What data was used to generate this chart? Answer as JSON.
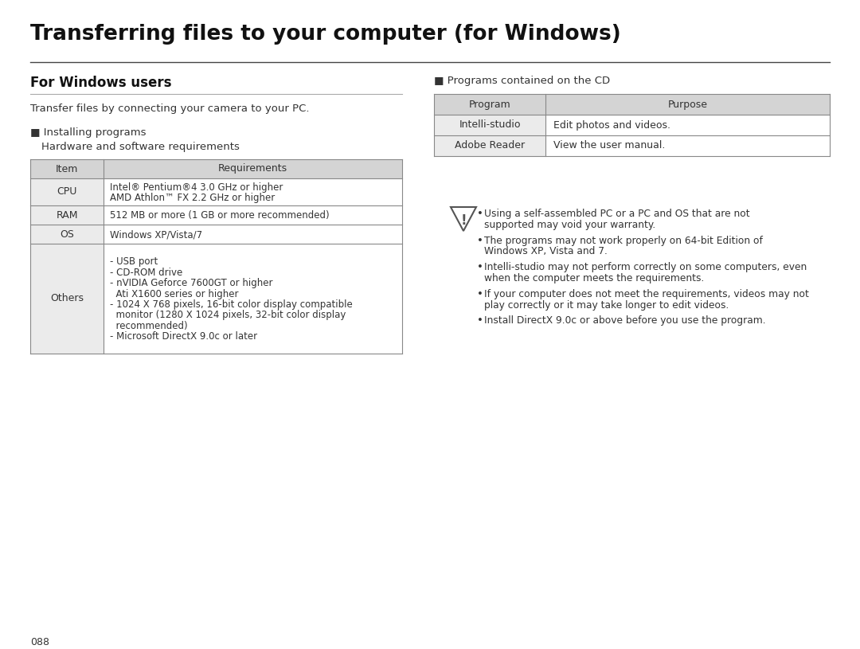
{
  "title": "Transferring files to your computer (for Windows)",
  "section_left": "For Windows users",
  "intro_text": "Transfer files by connecting your camera to your PC.",
  "installing_header": "■ Installing programs",
  "installing_sub": "Hardware and software requirements",
  "table1_headers": [
    "Item",
    "Requirements"
  ],
  "table1_rows": [
    [
      "CPU",
      "Intel® Pentium®4 3.0 GHz or higher\nAMD Athlon™ FX 2.2 GHz or higher"
    ],
    [
      "RAM",
      "512 MB or more (1 GB or more recommended)"
    ],
    [
      "OS",
      "Windows XP/Vista/7"
    ],
    [
      "Others",
      "- USB port\n- CD-ROM drive\n- nVIDIA Geforce 7600GT or higher\n  Ati X1600 series or higher\n- 1024 X 768 pixels, 16-bit color display compatible\n  monitor (1280 X 1024 pixels, 32-bit color display\n  recommended)\n- Microsoft DirectX 9.0c or later"
    ]
  ],
  "section_right": "■ Programs contained on the CD",
  "table2_headers": [
    "Program",
    "Purpose"
  ],
  "table2_rows": [
    [
      "Intelli-studio",
      "Edit photos and videos."
    ],
    [
      "Adobe Reader",
      "View the user manual."
    ]
  ],
  "warning_bullets": [
    "Using a self-assembled PC or a PC and OS that are not\nsupported may void your warranty.",
    "The programs may not work properly on 64-bit Edition of\nWindows XP, Vista and 7.",
    "Intelli-studio may not perform correctly on some computers, even\nwhen the computer meets the requirements.",
    "If your computer does not meet the requirements, videos may not\nplay correctly or it may take longer to edit videos.",
    "Install DirectX 9.0c or above before you use the program."
  ],
  "page_number": "088",
  "bg_color": "#ffffff",
  "table_header_bg": "#d4d4d4",
  "table_row_bg": "#ebebeb",
  "table_alt_bg": "#ffffff",
  "border_color": "#888888",
  "text_color": "#333333",
  "title_color": "#111111"
}
